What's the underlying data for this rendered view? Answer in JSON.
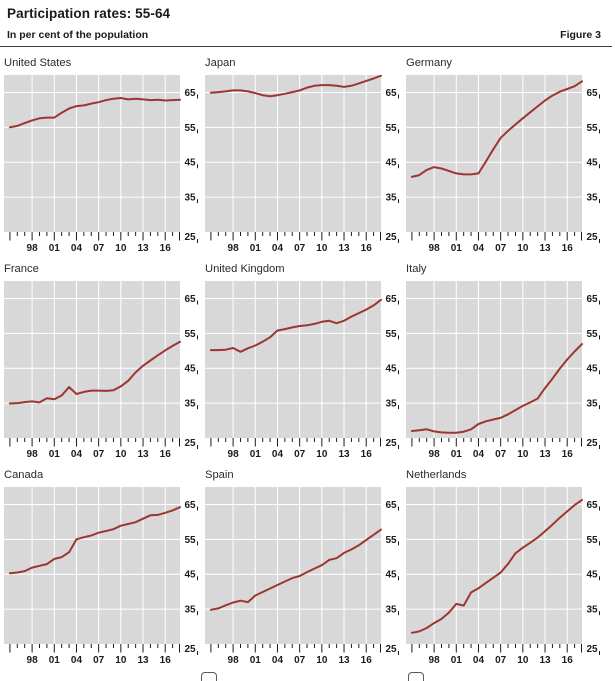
{
  "header": {
    "title": "Participation rates: 55-64",
    "subtitle": "In per cent of the population",
    "figure_label": "Figure 3"
  },
  "colors": {
    "line": "#9c3632",
    "plot_bg": "#d8d8d8",
    "grid": "#ffffff",
    "text": "#1c1c1c"
  },
  "chart_data": {
    "type": "line",
    "x": [
      1995,
      1996,
      1997,
      1998,
      1999,
      2000,
      2001,
      2002,
      2003,
      2004,
      2005,
      2006,
      2007,
      2008,
      2009,
      2010,
      2011,
      2012,
      2013,
      2014,
      2015,
      2016,
      2017,
      2018
    ],
    "x_axis_range": [
      1994.2,
      2018
    ],
    "ylim": [
      25,
      70
    ],
    "y_grid_ticks": [
      35,
      45,
      55,
      65
    ],
    "y_bottom_tick": 25,
    "x_label_years": [
      1998,
      2001,
      2004,
      2007,
      2010,
      2013,
      2016
    ],
    "x_tick_labels": [
      "98",
      "01",
      "04",
      "07",
      "10",
      "13",
      "16"
    ],
    "grid": "on",
    "legend": "none",
    "series": [
      {
        "name": "United States",
        "values": [
          55.0,
          55.4,
          56.2,
          57.0,
          57.6,
          57.8,
          57.8,
          59.2,
          60.4,
          61.1,
          61.3,
          61.8,
          62.2,
          62.8,
          63.2,
          63.4,
          63.0,
          63.2,
          63.0,
          62.8,
          62.9,
          62.7,
          62.8,
          62.9
        ]
      },
      {
        "name": "Japan",
        "values": [
          64.9,
          65.1,
          65.3,
          65.6,
          65.6,
          65.3,
          64.8,
          64.2,
          63.9,
          64.2,
          64.6,
          65.1,
          65.6,
          66.4,
          66.9,
          67.1,
          67.1,
          66.9,
          66.6,
          66.9,
          67.6,
          68.3,
          69.0,
          69.8
        ]
      },
      {
        "name": "Germany",
        "values": [
          40.8,
          41.3,
          42.8,
          43.6,
          43.2,
          42.5,
          41.8,
          41.5,
          41.5,
          41.8,
          45.2,
          48.7,
          52.0,
          54.0,
          55.8,
          57.6,
          59.3,
          61.0,
          62.7,
          64.1,
          65.2,
          66.0,
          66.8,
          68.2
        ]
      },
      {
        "name": "France",
        "values": [
          34.9,
          35.0,
          35.3,
          35.5,
          35.2,
          36.4,
          36.1,
          37.2,
          39.6,
          37.6,
          38.2,
          38.6,
          38.6,
          38.5,
          38.7,
          39.8,
          41.4,
          43.8,
          45.7,
          47.2,
          48.7,
          50.1,
          51.4,
          52.6
        ]
      },
      {
        "name": "United Kingdom",
        "values": [
          50.2,
          50.2,
          50.3,
          50.8,
          49.7,
          50.7,
          51.5,
          52.6,
          53.9,
          55.8,
          56.2,
          56.7,
          57.1,
          57.3,
          57.7,
          58.3,
          58.6,
          57.9,
          58.6,
          59.8,
          60.8,
          61.8,
          63.0,
          64.6
        ]
      },
      {
        "name": "Italy",
        "values": [
          27.0,
          27.2,
          27.5,
          26.9,
          26.6,
          26.5,
          26.5,
          26.8,
          27.5,
          29.0,
          29.8,
          30.3,
          30.8,
          31.8,
          33.0,
          34.2,
          35.2,
          36.3,
          39.3,
          42.0,
          44.9,
          47.5,
          49.8,
          51.9
        ]
      },
      {
        "name": "Canada",
        "values": [
          45.3,
          45.5,
          45.9,
          46.9,
          47.4,
          47.9,
          49.4,
          49.9,
          51.3,
          55.0,
          55.6,
          56.1,
          56.9,
          57.4,
          57.9,
          58.9,
          59.4,
          59.9,
          60.9,
          61.9,
          62.0,
          62.6,
          63.3,
          64.2
        ]
      },
      {
        "name": "Spain",
        "values": [
          34.8,
          35.2,
          36.1,
          36.9,
          37.4,
          37.0,
          38.9,
          39.9,
          40.9,
          41.9,
          42.9,
          43.9,
          44.5,
          45.6,
          46.6,
          47.6,
          49.1,
          49.6,
          51.1,
          52.1,
          53.3,
          54.8,
          56.3,
          57.8
        ]
      },
      {
        "name": "Netherlands",
        "values": [
          28.2,
          28.6,
          29.6,
          31.0,
          32.2,
          34.0,
          36.5,
          36.0,
          39.8,
          41.0,
          42.5,
          44.0,
          45.5,
          48.0,
          51.0,
          52.6,
          54.0,
          55.5,
          57.3,
          59.2,
          61.2,
          63.0,
          64.8,
          66.3
        ]
      }
    ]
  }
}
